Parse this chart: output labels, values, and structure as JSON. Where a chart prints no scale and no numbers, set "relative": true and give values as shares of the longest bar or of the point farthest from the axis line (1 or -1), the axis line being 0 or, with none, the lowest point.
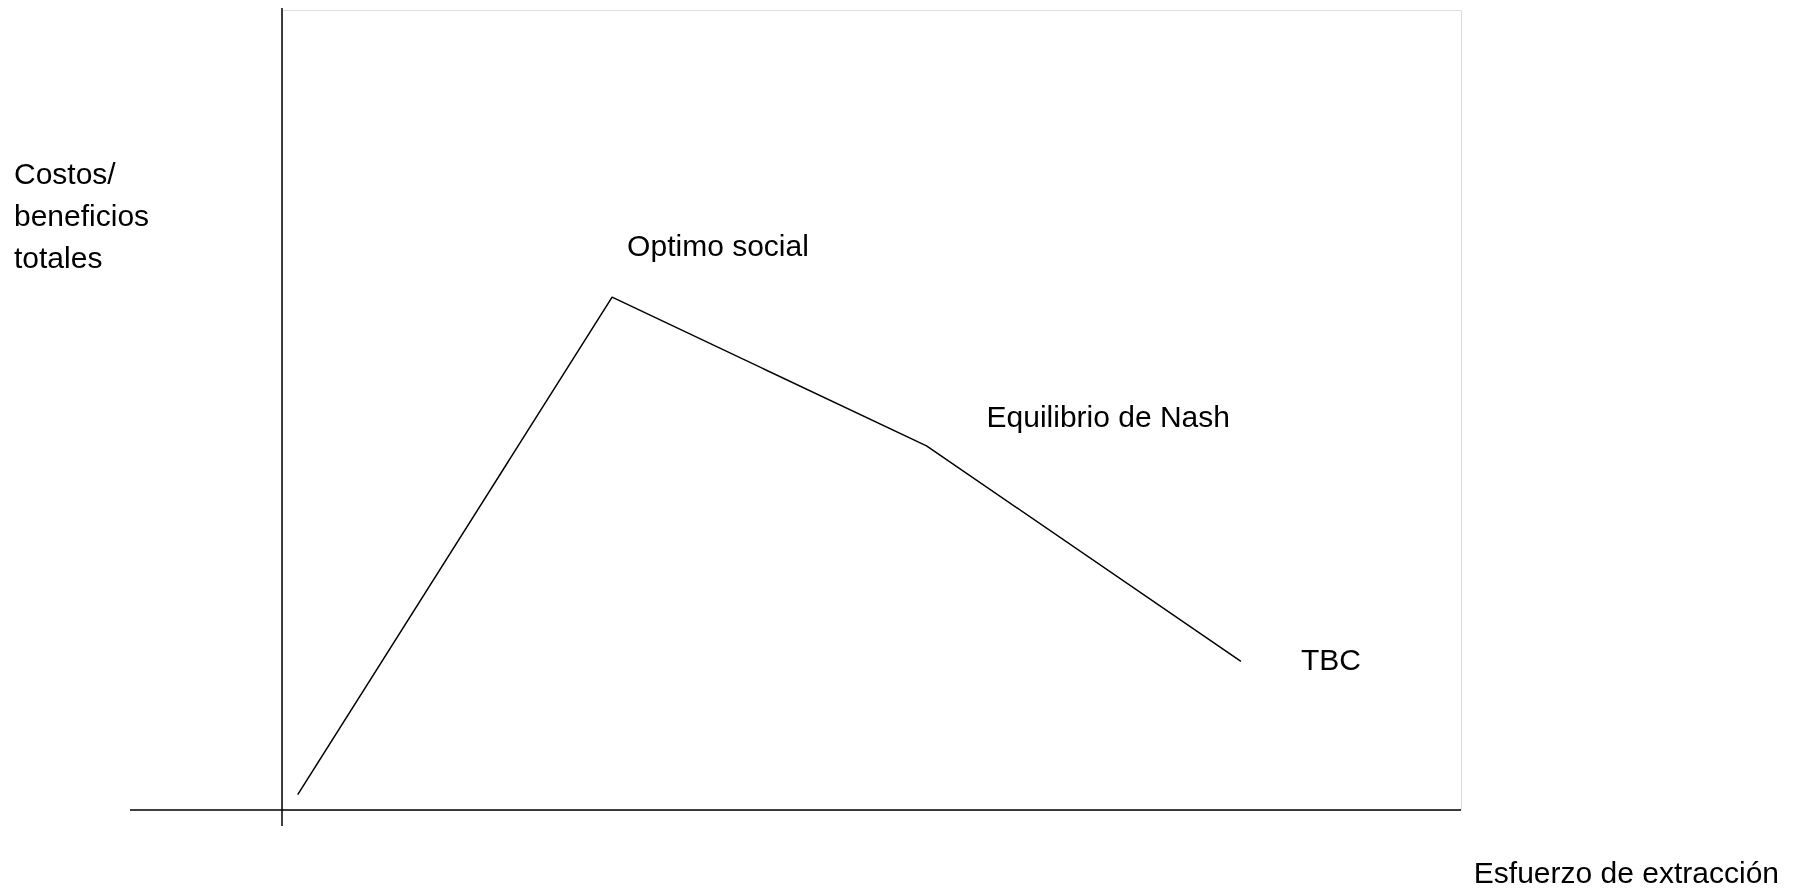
{
  "chart_data": {
    "type": "line",
    "relative": true,
    "marker": "none",
    "line_style": "solid",
    "xlabel": "Esfuerzo de extracción",
    "ylabel": "Costos/ beneficios totales",
    "categories": [
      null,
      null,
      null,
      null
    ],
    "series": [
      {
        "color": "#000000",
        "values": [
          0.03,
          1.0,
          0.71,
          0.29
        ]
      }
    ],
    "annotations": [
      "Optimo social",
      "Equilibrio de Nash",
      "TBC"
    ]
  }
}
